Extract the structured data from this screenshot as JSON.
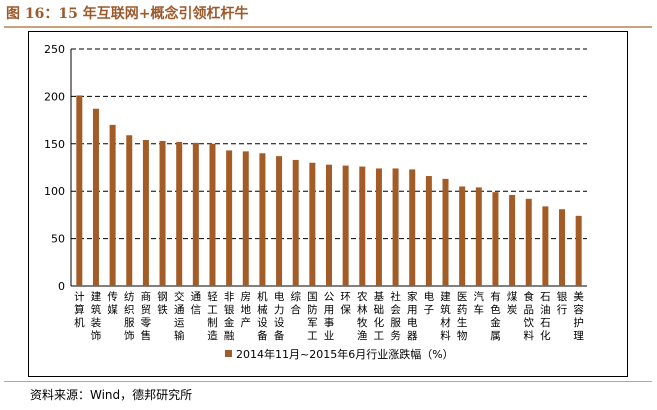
{
  "header": {
    "title": "图 16：15 年互联网+概念引领杠杆牛"
  },
  "footer": {
    "source": "资料来源：Wind，德邦研究所"
  },
  "chart_data": {
    "type": "bar",
    "title": "",
    "xlabel": "",
    "ylabel": "",
    "ylim": [
      0,
      250
    ],
    "yticks": [
      0,
      50,
      100,
      150,
      200,
      250
    ],
    "grid": "horizontal-dashed",
    "legend_placement": "bottom",
    "bar_color": "#a45c27",
    "series": [
      {
        "name": "2014年11月~2015年6月行业涨跌幅（%）",
        "values": [
          201,
          187,
          170,
          159,
          154,
          153,
          152,
          151,
          150,
          143,
          142,
          140,
          137,
          133,
          130,
          128,
          127,
          126,
          124,
          124,
          123,
          116,
          113,
          105,
          104,
          99,
          96,
          92,
          84,
          81,
          74
        ]
      }
    ],
    "categories": [
      "计算机",
      "建筑装饰",
      "传媒",
      "纺织服饰",
      "商贸零售",
      "钢铁",
      "交通运输",
      "通信",
      "轻工制造",
      "非银金融",
      "房地产",
      "机械设备",
      "电力设备",
      "综合",
      "国防军工",
      "公用事业",
      "环保",
      "农林牧渔",
      "基础化工",
      "社会服务",
      "家用电器",
      "电子",
      "建筑材料",
      "医药生物",
      "汽车",
      "有色金属",
      "煤炭",
      "食品饮料",
      "石油石化",
      "银行",
      "美容护理"
    ]
  }
}
